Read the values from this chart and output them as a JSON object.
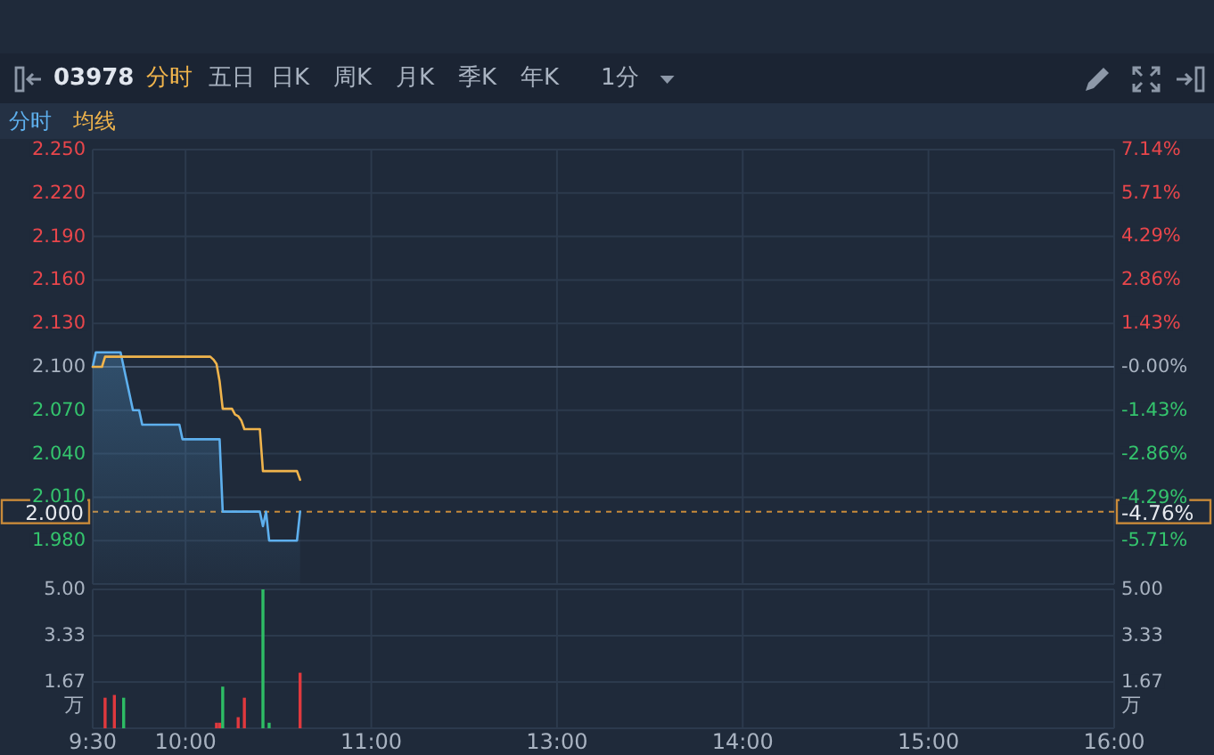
{
  "chart_data": [
    {
      "type": "other",
      "title": "03978",
      "annotations": [
        "分时",
        "五日",
        "日K",
        "周K",
        "月K",
        "季K",
        "年K",
        "1分"
      ]
    },
    {
      "type": "line",
      "annotations": [
        "-4.76%"
      ],
      "categories": [
        null,
        null,
        null,
        null,
        null,
        null,
        null,
        null,
        null,
        null,
        null,
        null,
        null,
        null,
        null,
        null,
        null,
        null,
        null,
        null,
        null,
        null,
        null,
        null,
        null,
        null,
        null,
        null,
        null,
        null,
        null,
        null,
        null,
        null,
        null,
        null,
        null,
        null,
        null,
        null,
        null,
        null,
        null,
        null,
        null,
        null,
        null,
        null,
        null,
        null,
        null,
        null,
        null,
        null,
        null,
        null,
        null,
        null,
        null,
        null,
        null,
        null,
        null,
        null,
        null,
        null,
        null,
        null,
        null,
        null,
        null,
        null,
        null,
        null,
        null,
        null,
        null,
        null,
        null,
        null,
        null,
        null,
        null,
        null,
        null,
        null,
        null,
        null,
        null,
        null,
        null,
        null,
        null,
        null,
        null,
        null,
        null,
        null,
        null,
        null,
        null,
        null,
        null,
        null,
        null,
        null,
        null,
        null,
        null,
        null,
        null,
        null,
        null,
        null,
        null,
        null,
        null,
        null,
        null,
        null,
        null,
        null,
        null,
        null,
        null,
        null,
        null,
        null,
        null,
        null,
        null,
        null,
        null,
        null,
        null,
        null,
        null,
        null,
        null,
        null,
        null,
        null,
        null,
        null,
        null,
        null,
        null,
        null,
        null,
        null,
        null,
        null,
        null,
        null,
        null,
        null,
        null,
        null,
        null,
        null,
        null,
        null,
        null,
        null,
        null,
        null,
        null,
        null,
        null,
        null,
        null,
        null,
        null,
        null,
        null,
        null,
        null,
        null,
        null,
        null,
        null,
        null,
        null,
        null,
        null,
        null,
        null,
        null,
        null,
        null,
        null,
        null,
        null,
        null,
        null,
        null,
        null,
        null,
        null,
        null,
        null,
        null,
        null,
        null,
        null,
        null,
        null,
        null,
        null,
        null,
        null,
        null,
        null,
        null,
        null,
        null,
        null,
        null,
        null,
        null,
        null,
        null,
        null,
        null,
        null,
        null,
        null,
        null,
        null,
        null,
        null,
        null,
        null,
        null,
        null,
        null,
        null,
        null,
        null,
        null,
        null,
        null,
        null,
        null,
        null,
        null,
        null,
        null,
        null,
        null,
        null,
        null,
        null,
        null,
        null,
        null,
        null,
        null,
        null,
        null,
        null,
        null,
        null,
        null,
        null,
        null,
        null,
        null,
        null,
        null,
        null,
        null,
        null,
        null,
        null,
        null,
        null,
        null,
        null,
        null,
        null,
        null,
        null,
        null,
        null,
        null,
        null,
        null,
        null,
        null,
        null,
        null,
        null,
        null,
        null,
        null,
        null,
        null,
        null,
        null,
        null,
        null,
        null,
        null,
        null,
        null,
        null,
        null,
        null,
        null,
        null,
        null,
        null,
        null,
        null,
        null,
        null,
        null,
        null,
        null,
        null,
        null,
        null,
        null,
        null,
        null,
        null,
        null,
        null,
        null,
        null
      ],
      "series": [
        {
          "name": "分时",
          "type": "area",
          "color": "#5eb0ee",
          "values": [
            2.1,
            2.11,
            2.11,
            2.11,
            2.11,
            2.11,
            2.11,
            2.11,
            2.11,
            2.11,
            2.1,
            2.09,
            2.08,
            2.07,
            2.07,
            2.07,
            2.06,
            2.06,
            2.06,
            2.06,
            2.06,
            2.06,
            2.06,
            2.06,
            2.06,
            2.06,
            2.06,
            2.06,
            2.06,
            2.05,
            2.05,
            2.05,
            2.05,
            2.05,
            2.05,
            2.05,
            2.05,
            2.05,
            2.05,
            2.05,
            2.05,
            2.05,
            2.0,
            2.0,
            2.0,
            2.0,
            2.0,
            2.0,
            2.0,
            2.0,
            2.0,
            2.0,
            2.0,
            2.0,
            2.0,
            1.99,
            2.0,
            1.98,
            1.98,
            1.98,
            1.98,
            1.98,
            1.98,
            1.98,
            1.98,
            1.98,
            1.98,
            2.0,
            null,
            null,
            null,
            null,
            null,
            null,
            null,
            null,
            null,
            null,
            null,
            null,
            null,
            null,
            null,
            null,
            null,
            null,
            null,
            null,
            null,
            null,
            null,
            null,
            null,
            null,
            null,
            null,
            null,
            null,
            null,
            null,
            null,
            null,
            null,
            null,
            null,
            null,
            null,
            null,
            null,
            null,
            null,
            null,
            null,
            null,
            null,
            null,
            null,
            null,
            null,
            null,
            null,
            null,
            null,
            null,
            null,
            null,
            null,
            null,
            null,
            null,
            null,
            null,
            null,
            null,
            null,
            null,
            null,
            null,
            null,
            null,
            null,
            null,
            null,
            null,
            null,
            null,
            null,
            null,
            null,
            null,
            null,
            null,
            null,
            null,
            null,
            null,
            null,
            null,
            null,
            null,
            null,
            null,
            null,
            null,
            null,
            null,
            null,
            null,
            null,
            null,
            null,
            null,
            null,
            null,
            null,
            null,
            null,
            null,
            null,
            null,
            null,
            null,
            null,
            null,
            null,
            null,
            null,
            null,
            null,
            null,
            null,
            null,
            null,
            null,
            null,
            null,
            null,
            null,
            null,
            null,
            null,
            null,
            null,
            null,
            null,
            null,
            null,
            null,
            null,
            null,
            null,
            null,
            null,
            null,
            null,
            null,
            null,
            null,
            null,
            null,
            null,
            null,
            null,
            null,
            null,
            null,
            null,
            null,
            null,
            null,
            null,
            null,
            null,
            null,
            null,
            null,
            null,
            null,
            null,
            null,
            null,
            null,
            null,
            null,
            null,
            null,
            null,
            null,
            null,
            null,
            null,
            null,
            null,
            null,
            null,
            null,
            null,
            null,
            null,
            null,
            null,
            null,
            null,
            null,
            null,
            null,
            null,
            null,
            null,
            null,
            null,
            null,
            null,
            null,
            null,
            null,
            null,
            null,
            null,
            null,
            null,
            null,
            null,
            null,
            null,
            null,
            null,
            null,
            null,
            null,
            null,
            null,
            null,
            null,
            null,
            null,
            null,
            null,
            null,
            null,
            null,
            null,
            null,
            null,
            null,
            null,
            null,
            null,
            null,
            null,
            null,
            null,
            null,
            null,
            null,
            null,
            null,
            null,
            null,
            null,
            null,
            null,
            null,
            null,
            null,
            null,
            null,
            null,
            null,
            null,
            null
          ]
        },
        {
          "name": "均线",
          "color": "#f0b44c",
          "values": [
            2.1,
            2.1,
            2.1,
            2.1,
            2.107,
            2.107,
            2.107,
            2.107,
            2.107,
            2.107,
            2.107,
            2.107,
            2.107,
            2.107,
            2.107,
            2.107,
            2.107,
            2.107,
            2.107,
            2.107,
            2.107,
            2.107,
            2.107,
            2.107,
            2.107,
            2.107,
            2.107,
            2.107,
            2.107,
            2.107,
            2.107,
            2.107,
            2.107,
            2.107,
            2.107,
            2.107,
            2.107,
            2.107,
            2.107,
            2.105,
            2.102,
            2.09,
            2.071,
            2.071,
            2.071,
            2.071,
            2.067,
            2.066,
            2.063,
            2.057,
            2.057,
            2.057,
            2.057,
            2.057,
            2.057,
            2.028,
            2.028,
            2.028,
            2.028,
            2.028,
            2.028,
            2.028,
            2.028,
            2.028,
            2.028,
            2.028,
            2.028,
            2.022,
            null,
            null,
            null,
            null,
            null,
            null,
            null,
            null,
            null,
            null,
            null,
            null,
            null,
            null,
            null,
            null,
            null,
            null,
            null,
            null,
            null,
            null,
            null,
            null,
            null,
            null,
            null,
            null,
            null,
            null,
            null,
            null,
            null,
            null,
            null,
            null,
            null,
            null,
            null,
            null,
            null,
            null,
            null,
            null,
            null,
            null,
            null,
            null,
            null,
            null,
            null,
            null,
            null,
            null,
            null,
            null,
            null,
            null,
            null,
            null,
            null,
            null,
            null,
            null,
            null,
            null,
            null,
            null,
            null,
            null,
            null,
            null,
            null,
            null,
            null,
            null,
            null,
            null,
            null,
            null,
            null,
            null,
            null,
            null,
            null,
            null,
            null,
            null,
            null,
            null,
            null,
            null,
            null,
            null,
            null,
            null,
            null,
            null,
            null,
            null,
            null,
            null,
            null,
            null,
            null,
            null,
            null,
            null,
            null,
            null,
            null,
            null,
            null,
            null,
            null,
            null,
            null,
            null,
            null,
            null,
            null,
            null,
            null,
            null,
            null,
            null,
            null,
            null,
            null,
            null,
            null,
            null,
            null,
            null,
            null,
            null,
            null,
            null,
            null,
            null,
            null,
            null,
            null,
            null,
            null,
            null,
            null,
            null,
            null,
            null,
            null,
            null,
            null,
            null,
            null,
            null,
            null,
            null,
            null,
            null,
            null,
            null,
            null,
            null,
            null,
            null,
            null,
            null,
            null,
            null,
            null,
            null,
            null,
            null,
            null,
            null,
            null,
            null,
            null,
            null,
            null,
            null,
            null,
            null,
            null,
            null,
            null,
            null,
            null,
            null,
            null,
            null,
            null,
            null,
            null,
            null,
            null,
            null,
            null,
            null,
            null,
            null,
            null,
            null,
            null,
            null,
            null,
            null,
            null,
            null,
            null,
            null,
            null,
            null,
            null,
            null,
            null,
            null,
            null,
            null,
            null,
            null,
            null,
            null,
            null,
            null,
            null,
            null,
            null,
            null,
            null,
            null,
            null,
            null,
            null,
            null,
            null,
            null,
            null,
            null,
            null,
            null,
            null,
            null,
            null,
            null,
            null,
            null,
            null,
            null,
            null,
            null,
            null,
            null,
            null,
            null,
            null,
            null,
            null,
            null,
            null,
            null,
            null
          ]
        }
      ],
      "ylim": [
        1.95,
        2.25
      ],
      "yticks": [
        {
          "value": 2.25,
          "label": "2.250"
        },
        {
          "value": 2.22,
          "label": "2.220"
        },
        {
          "value": 2.19,
          "label": "2.190"
        },
        {
          "value": 2.16,
          "label": "2.160"
        },
        {
          "value": 2.13,
          "label": "2.130"
        },
        {
          "value": 2.1,
          "label": "2.100"
        },
        {
          "value": 2.07,
          "label": "2.070"
        },
        {
          "value": 2.04,
          "label": "2.040"
        },
        {
          "value": 2.01,
          "label": "2.010"
        },
        {
          "value": 1.98,
          "label": "1.980"
        }
      ],
      "y2lim": [
        -7.14,
        7.14
      ],
      "y2ticks": [
        {
          "value": 7.14,
          "label": "7.14%"
        },
        {
          "value": 5.71,
          "label": "5.71%"
        },
        {
          "value": 4.29,
          "label": "4.29%"
        },
        {
          "value": 2.86,
          "label": "2.86%"
        },
        {
          "value": 1.43,
          "label": "1.43%"
        },
        {
          "value": 0,
          "label": "-0.00%"
        },
        {
          "value": -1.43,
          "label": "-1.43%"
        },
        {
          "value": -2.86,
          "label": "-2.86%"
        },
        {
          "value": -4.29,
          "label": "-4.29%"
        },
        {
          "value": -5.71,
          "label": "-5.71%"
        }
      ],
      "ref_lines": [
        {
          "axis": "y",
          "value": 2.1,
          "color": "#4f5f75"
        },
        {
          "axis": "y",
          "value": 2.0,
          "label": "2.000",
          "color": "#c88a3a",
          "line_style": "dashed"
        }
      ],
      "grid": true,
      "legend": "top left",
      "tick_labels": "y"
    },
    {
      "type": "bar",
      "categories": [
        "9:30",
        null,
        null,
        null,
        null,
        null,
        null,
        null,
        null,
        null,
        null,
        null,
        null,
        null,
        null,
        null,
        null,
        null,
        null,
        null,
        null,
        null,
        null,
        null,
        null,
        null,
        null,
        null,
        null,
        null,
        "10:00",
        null,
        null,
        null,
        null,
        null,
        null,
        null,
        null,
        null,
        null,
        null,
        null,
        null,
        null,
        null,
        null,
        null,
        null,
        null,
        null,
        null,
        null,
        null,
        null,
        null,
        null,
        null,
        null,
        null,
        null,
        null,
        null,
        null,
        null,
        null,
        null,
        null,
        null,
        null,
        null,
        null,
        null,
        null,
        null,
        null,
        null,
        null,
        null,
        null,
        null,
        null,
        null,
        null,
        null,
        null,
        null,
        null,
        null,
        null,
        "11:00",
        null,
        null,
        null,
        null,
        null,
        null,
        null,
        null,
        null,
        null,
        null,
        null,
        null,
        null,
        null,
        null,
        null,
        null,
        null,
        null,
        null,
        null,
        null,
        null,
        null,
        null,
        null,
        null,
        null,
        null,
        null,
        null,
        null,
        null,
        null,
        null,
        null,
        null,
        null,
        null,
        null,
        null,
        null,
        null,
        null,
        null,
        null,
        null,
        null,
        null,
        null,
        null,
        null,
        null,
        null,
        null,
        null,
        null,
        null,
        "13:00",
        null,
        null,
        null,
        null,
        null,
        null,
        null,
        null,
        null,
        null,
        null,
        null,
        null,
        null,
        null,
        null,
        null,
        null,
        null,
        null,
        null,
        null,
        null,
        null,
        null,
        null,
        null,
        null,
        null,
        null,
        null,
        null,
        null,
        null,
        null,
        null,
        null,
        null,
        null,
        null,
        null,
        null,
        null,
        null,
        null,
        null,
        null,
        null,
        null,
        null,
        null,
        null,
        null,
        null,
        null,
        null,
        null,
        null,
        null,
        "14:00",
        null,
        null,
        null,
        null,
        null,
        null,
        null,
        null,
        null,
        null,
        null,
        null,
        null,
        null,
        null,
        null,
        null,
        null,
        null,
        null,
        null,
        null,
        null,
        null,
        null,
        null,
        null,
        null,
        null,
        null,
        null,
        null,
        null,
        null,
        null,
        null,
        null,
        null,
        null,
        null,
        null,
        null,
        null,
        null,
        null,
        null,
        null,
        null,
        null,
        null,
        null,
        null,
        null,
        null,
        null,
        null,
        null,
        null,
        null,
        "15:00",
        null,
        null,
        null,
        null,
        null,
        null,
        null,
        null,
        null,
        null,
        null,
        null,
        null,
        null,
        null,
        null,
        null,
        null,
        null,
        null,
        null,
        null,
        null,
        null,
        null,
        null,
        null,
        null,
        null,
        null,
        null,
        null,
        null,
        null,
        null,
        null,
        null,
        null,
        null,
        null,
        null,
        null,
        null,
        null,
        null,
        null,
        null,
        null,
        null,
        null,
        null,
        null,
        null,
        null,
        null,
        null,
        null,
        null,
        null,
        "16:00"
      ],
      "values": [
        null,
        null,
        null,
        null,
        1.1,
        null,
        null,
        1.2,
        null,
        null,
        1.1,
        null,
        null,
        null,
        null,
        null,
        null,
        null,
        null,
        null,
        null,
        null,
        null,
        null,
        null,
        null,
        null,
        null,
        null,
        null,
        null,
        null,
        null,
        null,
        null,
        null,
        null,
        null,
        null,
        null,
        0.2,
        0.2,
        1.5,
        null,
        null,
        null,
        null,
        0.4,
        null,
        1.1,
        null,
        null,
        null,
        null,
        null,
        5.0,
        null,
        0.2,
        null,
        null,
        null,
        null,
        null,
        null,
        null,
        null,
        null,
        2.0,
        null,
        null,
        null,
        null,
        null,
        null,
        null,
        null,
        null,
        null,
        null,
        null,
        null,
        null,
        null,
        null,
        null,
        null,
        null,
        null,
        null,
        null,
        null,
        null,
        null,
        null,
        null,
        null,
        null,
        null,
        null,
        null,
        null,
        null,
        null,
        null,
        null,
        null,
        null,
        null,
        null,
        null,
        null,
        null,
        null,
        null,
        null,
        null,
        null,
        null,
        null,
        null,
        null,
        null,
        null,
        null,
        null,
        null,
        null,
        null,
        null,
        null,
        null,
        null,
        null,
        null,
        null,
        null,
        null,
        null,
        null,
        null,
        null,
        null,
        null,
        null,
        null,
        null,
        null,
        null,
        null,
        null,
        null,
        null,
        null,
        null,
        null,
        null,
        null,
        null,
        null,
        null,
        null,
        null,
        null,
        null,
        null,
        null,
        null,
        null,
        null,
        null,
        null,
        null,
        null,
        null,
        null,
        null,
        null,
        null,
        null,
        null,
        null,
        null,
        null,
        null,
        null,
        null,
        null,
        null,
        null,
        null,
        null,
        null,
        null,
        null,
        null,
        null,
        null,
        null,
        null,
        null,
        null,
        null,
        null,
        null,
        null,
        null,
        null,
        null,
        null,
        null,
        null,
        null,
        null,
        null,
        null,
        null,
        null,
        null,
        null,
        null,
        null,
        null,
        null,
        null,
        null,
        null,
        null,
        null,
        null,
        null,
        null,
        null,
        null,
        null,
        null,
        null,
        null,
        null,
        null,
        null,
        null,
        null,
        null,
        null,
        null,
        null,
        null,
        null,
        null,
        null,
        null,
        null,
        null,
        null,
        null,
        null,
        null,
        null,
        null,
        null,
        null,
        null,
        null,
        null,
        null,
        null,
        null,
        null,
        null,
        null,
        null,
        null,
        null,
        null,
        null,
        null,
        null,
        null,
        null,
        null,
        null,
        null,
        null,
        null,
        null,
        null,
        null,
        null,
        null,
        null,
        null,
        null,
        null,
        null,
        null,
        null,
        null,
        null,
        null,
        null,
        null,
        null,
        null,
        null,
        null,
        null,
        null,
        null,
        null,
        null,
        null,
        null,
        null,
        null,
        null,
        null,
        null,
        null,
        null,
        null,
        null,
        null,
        null,
        null,
        null,
        null,
        null,
        null,
        null,
        null,
        null
      ],
      "colors": [
        null,
        null,
        null,
        null,
        "#e0393e",
        null,
        null,
        "#e0393e",
        null,
        null,
        "#2ebd65",
        null,
        null,
        null,
        null,
        null,
        null,
        null,
        null,
        null,
        null,
        null,
        null,
        null,
        null,
        null,
        null,
        null,
        null,
        null,
        null,
        null,
        null,
        null,
        null,
        null,
        null,
        null,
        null,
        null,
        "#e0393e",
        "#e0393e",
        "#2ebd65",
        null,
        null,
        null,
        null,
        "#e0393e",
        null,
        "#e0393e",
        null,
        null,
        null,
        null,
        null,
        "#2ebd65",
        null,
        "#2ebd65",
        null,
        null,
        null,
        null,
        null,
        null,
        null,
        null,
        null,
        "#e0393e",
        null,
        null,
        null,
        null,
        null,
        null,
        null,
        null,
        null,
        null,
        null,
        null,
        null,
        null,
        null,
        null,
        null,
        null,
        null,
        null,
        null,
        null,
        null,
        null,
        null,
        null,
        null,
        null,
        null,
        null,
        null,
        null,
        null,
        null,
        null,
        null,
        null,
        null,
        null,
        null,
        null,
        null,
        null,
        null,
        null,
        null,
        null,
        null,
        null,
        null,
        null,
        null,
        null,
        null,
        null,
        null,
        null,
        null,
        null,
        null,
        null,
        null,
        null,
        null,
        null,
        null,
        null,
        null,
        null,
        null,
        null,
        null,
        null,
        null,
        null,
        null,
        null,
        null,
        null,
        null,
        null,
        null,
        null,
        null,
        null,
        null,
        null,
        null,
        null,
        null,
        null,
        null,
        null,
        null,
        null,
        null,
        null,
        null,
        null,
        null,
        null,
        null,
        null,
        null,
        null,
        null,
        null,
        null,
        null,
        null,
        null,
        null,
        null,
        null,
        null,
        null,
        null,
        null,
        null,
        null,
        null,
        null,
        null,
        null,
        null,
        null,
        null,
        null,
        null,
        null,
        null,
        null,
        null,
        null,
        null,
        null,
        null,
        null,
        null,
        null,
        null,
        null,
        null,
        null,
        null,
        null,
        null,
        null,
        null,
        null,
        null,
        null,
        null,
        null,
        null,
        null,
        null,
        null,
        null,
        null,
        null,
        null,
        null,
        null,
        null,
        null,
        null,
        null,
        null,
        null,
        null,
        null,
        null,
        null,
        null,
        null,
        null,
        null,
        null,
        null,
        null,
        null,
        null,
        null,
        null,
        null,
        null,
        null,
        null,
        null,
        null,
        null,
        null,
        null,
        null,
        null,
        null,
        null,
        null,
        null,
        null,
        null,
        null,
        null,
        null,
        null,
        null,
        null,
        null,
        null,
        null,
        null,
        null,
        null,
        null,
        null,
        null,
        null,
        null,
        null,
        null,
        null,
        null,
        null,
        null,
        null,
        null,
        null,
        null,
        null,
        null,
        null,
        null,
        null,
        null,
        null,
        null,
        null,
        null,
        null,
        null,
        null,
        null,
        null,
        null,
        null,
        null,
        null,
        null,
        null,
        null,
        null,
        null,
        null,
        null,
        null,
        null,
        null,
        null,
        null,
        null,
        null,
        null
      ],
      "ylim": [
        0,
        5
      ],
      "yticks": [
        1.67,
        3.33,
        {
          "value": 5,
          "label": "5.00"
        }
      ],
      "y2lim": [
        0,
        5
      ],
      "y2ticks": [
        1.67,
        3.33,
        {
          "value": 5,
          "label": "5.00"
        }
      ],
      "ylabel": "万",
      "y2label": "万",
      "grid": true
    }
  ]
}
